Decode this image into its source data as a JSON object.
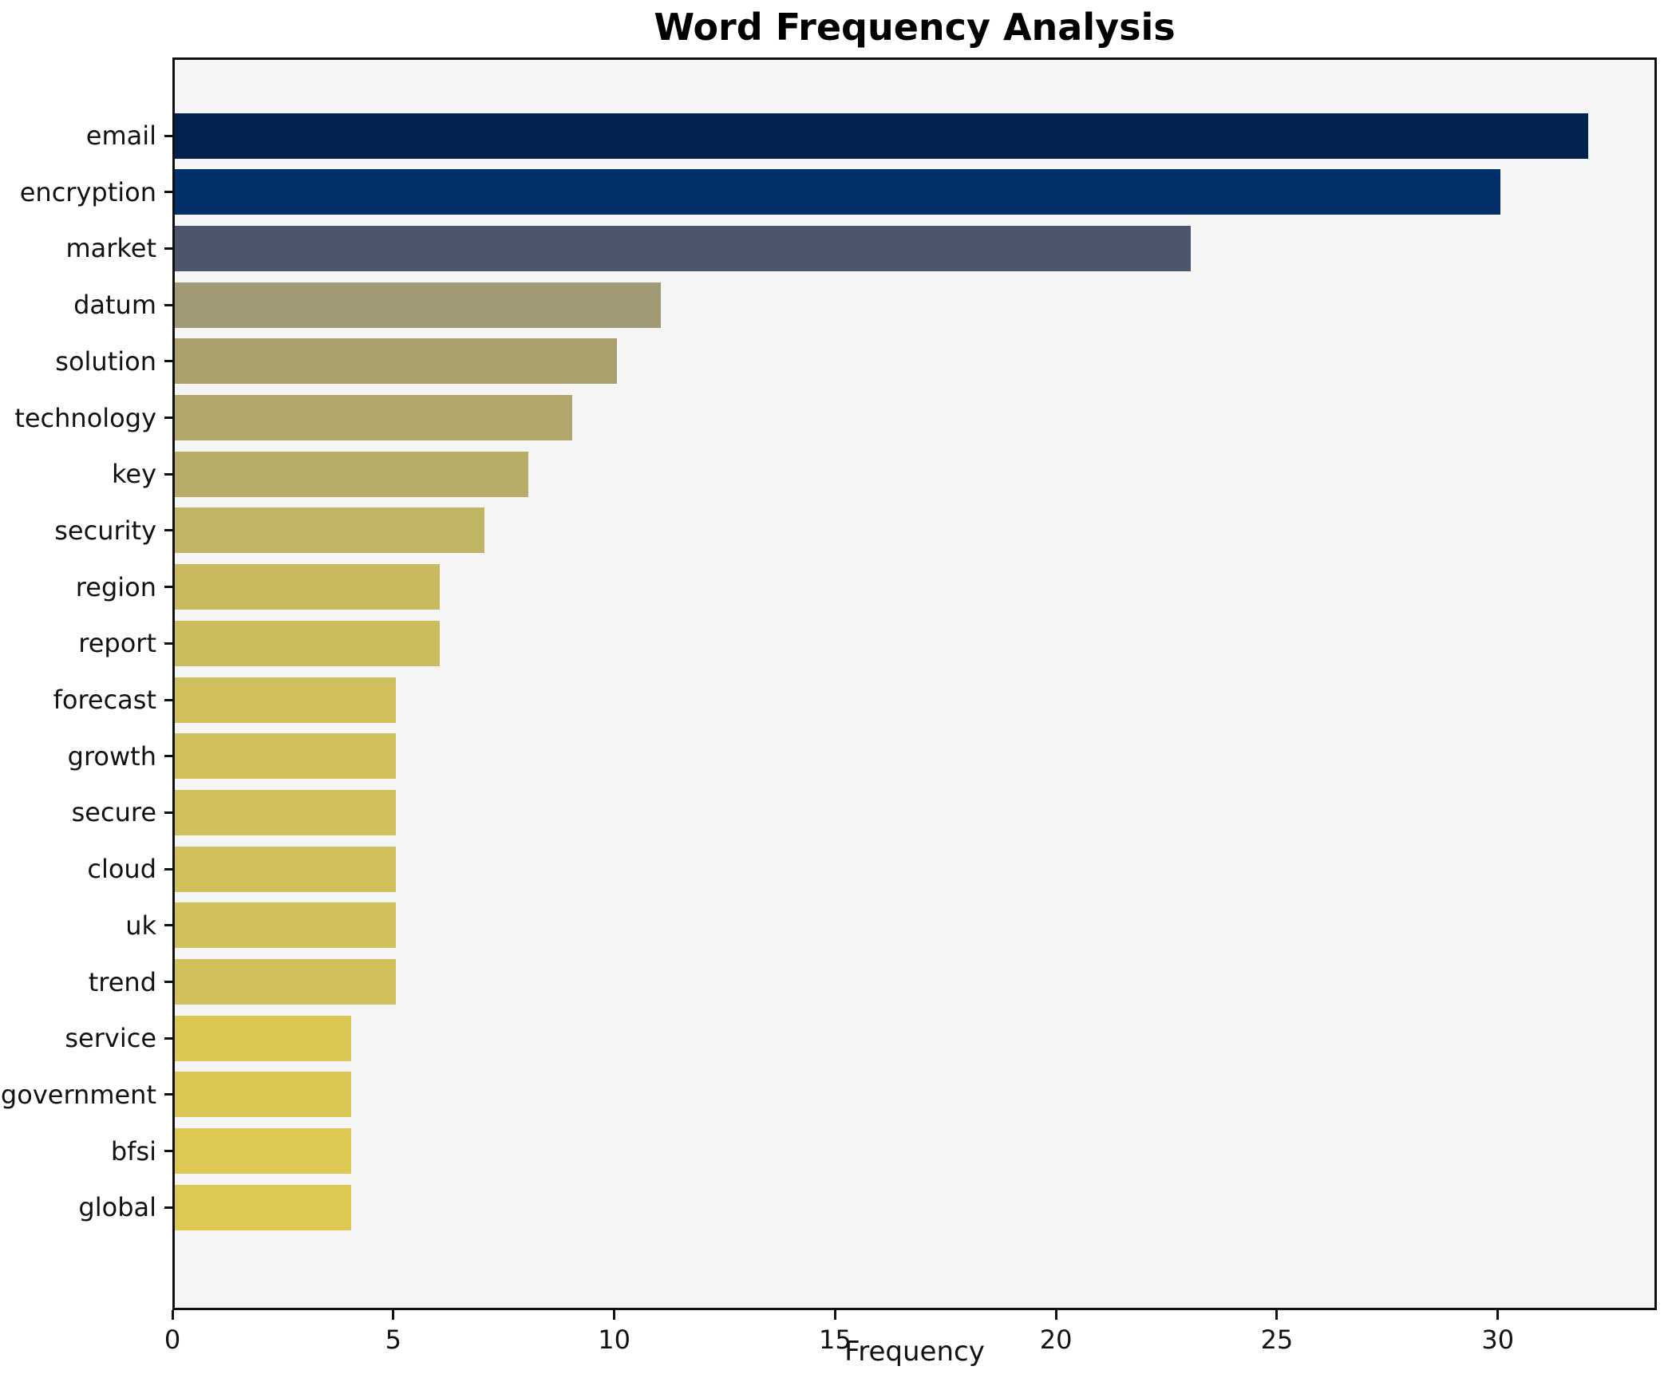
{
  "chart_data": {
    "type": "bar",
    "orientation": "horizontal",
    "title": "Word Frequency Analysis",
    "xlabel": "Frequency",
    "ylabel": "",
    "categories": [
      "email",
      "encryption",
      "market",
      "datum",
      "solution",
      "technology",
      "key",
      "security",
      "region",
      "report",
      "forecast",
      "growth",
      "secure",
      "cloud",
      "uk",
      "trend",
      "service",
      "government",
      "bfsi",
      "global"
    ],
    "values": [
      32,
      30,
      23,
      11,
      10,
      9,
      8,
      7,
      6,
      6,
      5,
      5,
      5,
      5,
      5,
      5,
      4,
      4,
      4,
      4
    ],
    "bar_colors": [
      "#02234e",
      "#03306b",
      "#4b556c",
      "#a29a74",
      "#a9a06e",
      "#b2a76b",
      "#b8ad68",
      "#c0b465",
      "#c9ba60",
      "#cbbc5e",
      "#d0c05c",
      "#d1c15c",
      "#d1c15c",
      "#d1c15c",
      "#d1c15c",
      "#d1c15c",
      "#dbc753",
      "#dbc753",
      "#ddc854",
      "#ddc854"
    ],
    "xticks": [
      0,
      5,
      10,
      15,
      20,
      25,
      30
    ],
    "xlim": [
      0,
      33.6
    ],
    "grid": false,
    "legend_position": "none",
    "plot_background": "#f5f5f6",
    "figure_background": "#ffffff",
    "axis_color": "#101010",
    "text_color": "#111111"
  }
}
